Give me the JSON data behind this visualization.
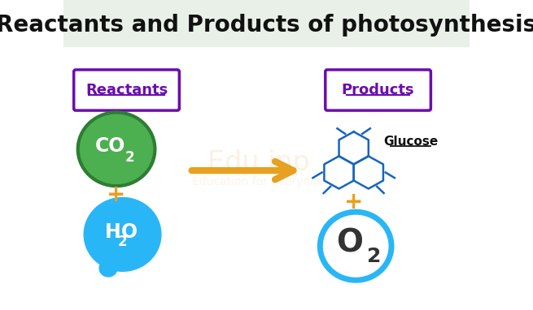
{
  "title": "Reactants and Products of photosynthesis",
  "title_fontsize": 20,
  "title_bg": "#e8f0e8",
  "reactants_label": "Reactants",
  "products_label": "Products",
  "label_color": "#6a0dad",
  "co2_color": "#4caf50",
  "co2_border": "#2e7d32",
  "h2o_color": "#29b6f6",
  "plus_color": "#e8a020",
  "arrow_color": "#e8a020",
  "glucose_color": "#1565c0",
  "o2_color": "#29b6f6",
  "glucose_label": "Glucose",
  "background_color": "#ffffff"
}
